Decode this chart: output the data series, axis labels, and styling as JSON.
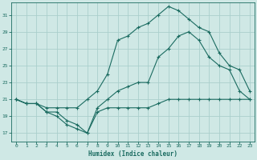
{
  "xlabel": "Humidex (Indice chaleur)",
  "bg_color": "#cfe8e5",
  "grid_color": "#aacfcc",
  "line_color": "#1a6b60",
  "x_ticks": [
    0,
    1,
    2,
    3,
    4,
    5,
    6,
    7,
    8,
    9,
    10,
    11,
    12,
    13,
    14,
    15,
    16,
    17,
    18,
    19,
    20,
    21,
    22,
    23
  ],
  "y_ticks": [
    17,
    19,
    21,
    23,
    25,
    27,
    29,
    31
  ],
  "ylim": [
    16.0,
    32.5
  ],
  "xlim": [
    -0.5,
    23.5
  ],
  "line1_y": [
    21,
    20.5,
    20.5,
    19.5,
    19,
    18,
    17.5,
    17,
    19.5,
    20,
    20,
    20,
    20,
    20,
    20.5,
    21,
    21,
    21,
    21,
    21,
    21,
    21,
    21,
    21
  ],
  "line2_y": [
    21,
    20.5,
    20.5,
    19.5,
    19.5,
    18.5,
    18,
    17,
    20,
    21,
    22,
    22.5,
    23,
    23,
    26,
    27,
    28.5,
    29,
    28,
    26,
    25,
    24.5,
    22,
    21
  ],
  "line3_y": [
    21,
    20.5,
    20.5,
    20,
    20,
    20,
    20,
    21,
    22,
    24,
    28,
    28.5,
    29.5,
    30,
    31,
    32,
    31.5,
    30.5,
    29.5,
    29,
    26.5,
    25,
    24.5,
    22
  ]
}
